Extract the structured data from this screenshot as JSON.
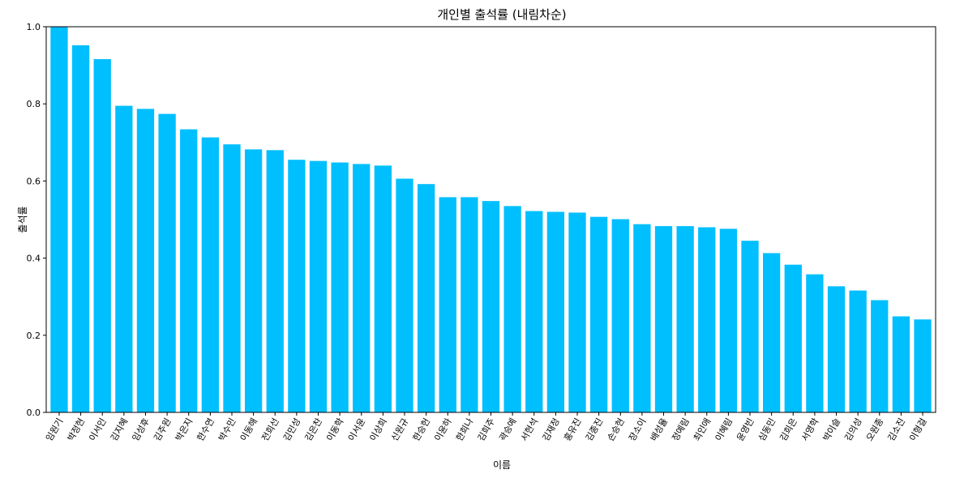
{
  "chart_data": {
    "type": "bar",
    "title": "개인별 출석률 (내림차순)",
    "xlabel": "이름",
    "ylabel": "출석률",
    "ylim": [
      0,
      1.0
    ],
    "yticks": [
      "0.0",
      "0.2",
      "0.4",
      "0.6",
      "0.8",
      "1.0"
    ],
    "grid": false,
    "bar_color": "#00bfff",
    "categories": [
      "임원기",
      "박정현",
      "이서인",
      "김지혜",
      "임성후",
      "김주원",
      "박은지",
      "한수연",
      "박수민",
      "이동해",
      "전희선",
      "김민성",
      "김은찬",
      "이동학",
      "이서윤",
      "이상희",
      "신원규",
      "한승헌",
      "이윤하",
      "한희나",
      "김희주",
      "곽승예",
      "서현석",
      "김재정",
      "홍유진",
      "김종진",
      "손승현",
      "장소이",
      "배성율",
      "정예림",
      "최인애",
      "이혜림",
      "윤영빈",
      "심동민",
      "김희은",
      "서영학",
      "박이슬",
      "김의성",
      "오원종",
      "김소진",
      "이형걸"
    ],
    "values": [
      1.0,
      0.952,
      0.916,
      0.795,
      0.787,
      0.774,
      0.734,
      0.713,
      0.695,
      0.682,
      0.68,
      0.655,
      0.652,
      0.648,
      0.644,
      0.64,
      0.606,
      0.592,
      0.558,
      0.558,
      0.548,
      0.535,
      0.522,
      0.52,
      0.518,
      0.507,
      0.501,
      0.488,
      0.483,
      0.483,
      0.48,
      0.476,
      0.445,
      0.413,
      0.383,
      0.358,
      0.327,
      0.316,
      0.291,
      0.249,
      0.241
    ]
  }
}
